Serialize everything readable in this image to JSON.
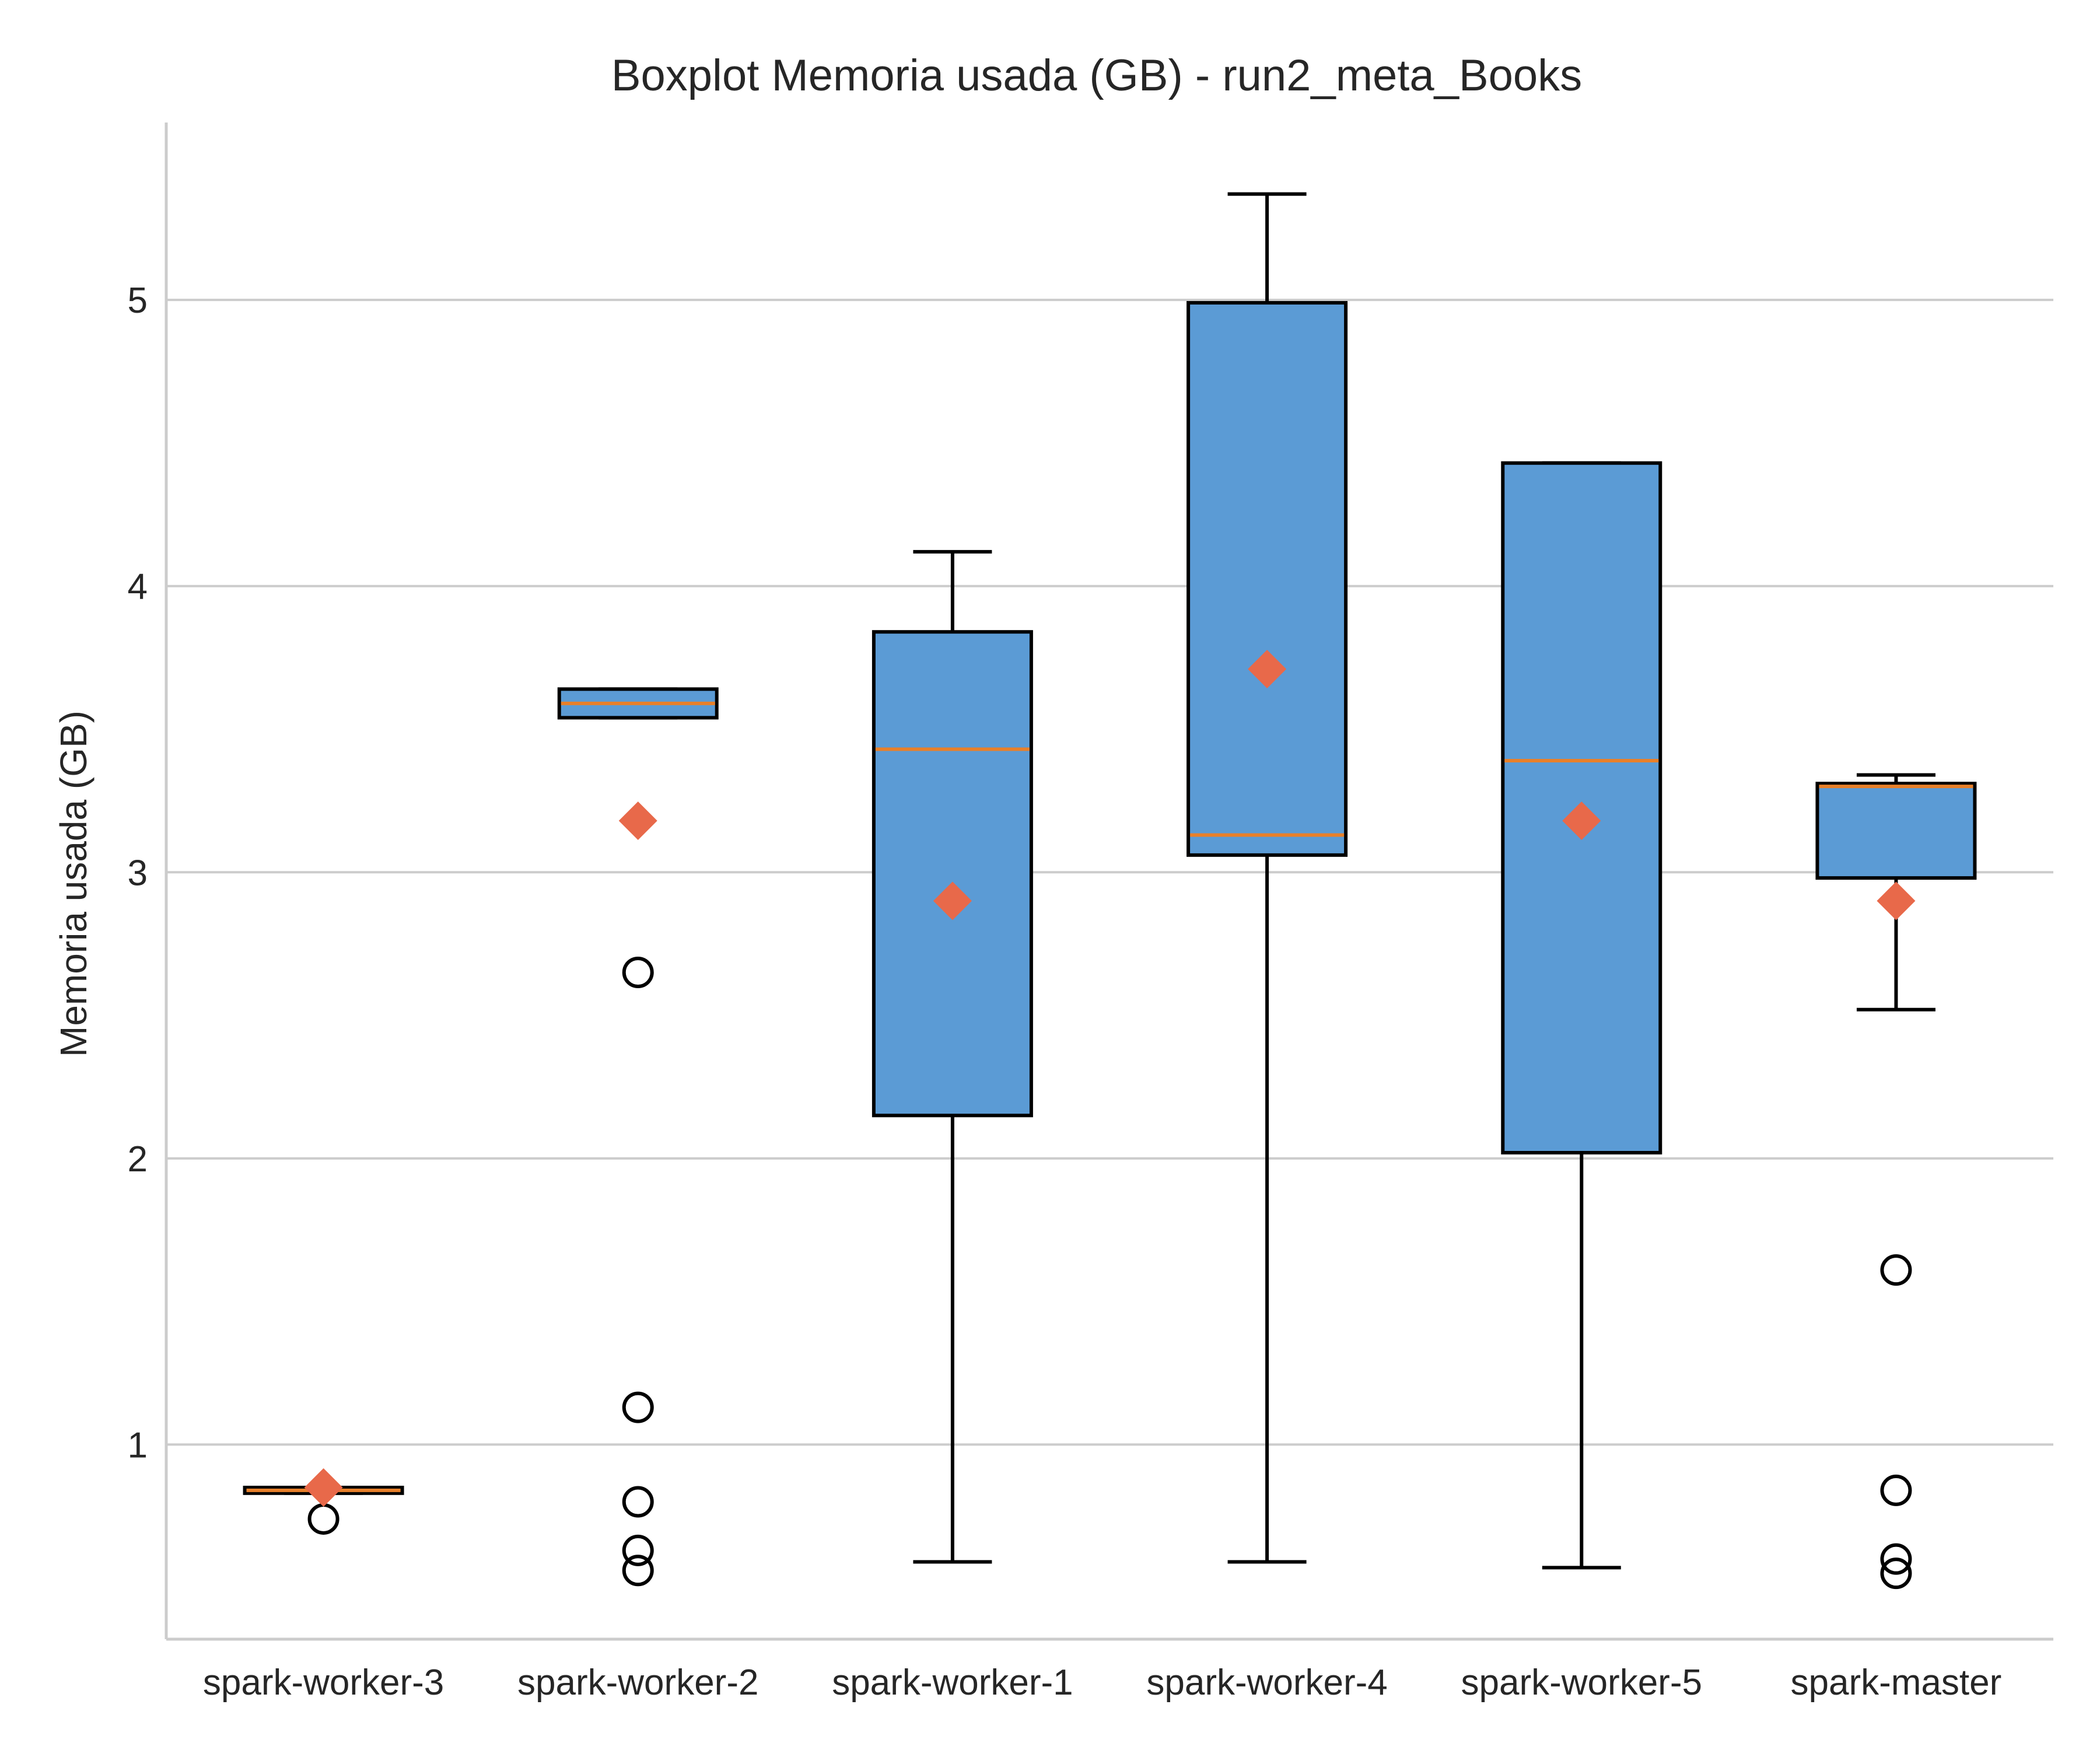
{
  "chart_data": {
    "type": "boxplot",
    "title": "Boxplot Memoria usada (GB) - run2_meta_Books",
    "xlabel": "",
    "ylabel": "Memoria usada (GB)",
    "ylim": [
      0.32,
      5.62
    ],
    "yticks": [
      1,
      2,
      3,
      4,
      5
    ],
    "grid": "y",
    "categories": [
      "spark-worker-3",
      "spark-worker-2",
      "spark-worker-1",
      "spark-worker-4",
      "spark-worker-5",
      "spark-master"
    ],
    "boxes": [
      {
        "category": "spark-worker-3",
        "whisker_low": 0.83,
        "q1": 0.83,
        "median": 0.84,
        "q3": 0.85,
        "whisker_high": 0.85,
        "mean": 0.85,
        "outliers": [
          0.74
        ]
      },
      {
        "category": "spark-worker-2",
        "whisker_low": 3.54,
        "q1": 3.54,
        "median": 3.59,
        "q3": 3.64,
        "whisker_high": 3.64,
        "mean": 3.18,
        "outliers": [
          2.65,
          1.13,
          0.8,
          0.63,
          0.56
        ]
      },
      {
        "category": "spark-worker-1",
        "whisker_low": 0.59,
        "q1": 2.15,
        "median": 3.43,
        "q3": 3.84,
        "whisker_high": 4.12,
        "mean": 2.9,
        "outliers": []
      },
      {
        "category": "spark-worker-4",
        "whisker_low": 0.59,
        "q1": 3.06,
        "median": 3.13,
        "q3": 4.99,
        "whisker_high": 5.37,
        "mean": 3.71,
        "outliers": []
      },
      {
        "category": "spark-worker-5",
        "whisker_low": 0.57,
        "q1": 2.02,
        "median": 3.39,
        "q3": 4.43,
        "whisker_high": 4.43,
        "mean": 3.18,
        "outliers": []
      },
      {
        "category": "spark-master",
        "whisker_low": 2.52,
        "q1": 2.98,
        "median": 3.3,
        "q3": 3.31,
        "whisker_high": 3.34,
        "mean": 2.9,
        "outliers": [
          1.61,
          0.84,
          0.6,
          0.55
        ]
      }
    ],
    "colors": {
      "box_fill": "#5b9bd5",
      "box_edge": "#000000",
      "median": "#e8802a",
      "mean": "#e8694a",
      "grid": "#cccccc",
      "spine": "#cccccc"
    }
  }
}
